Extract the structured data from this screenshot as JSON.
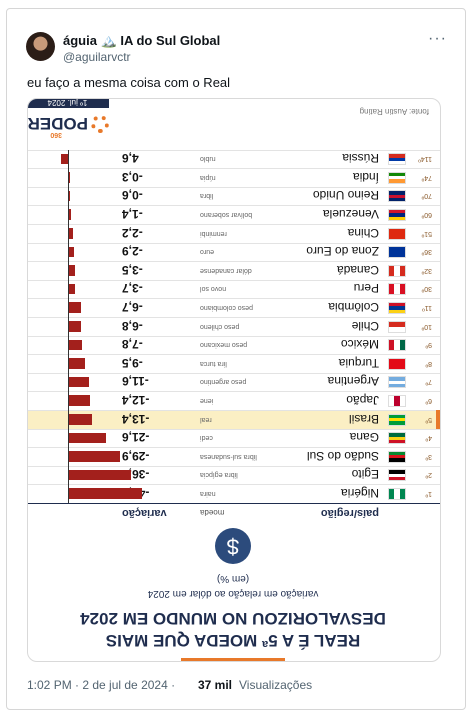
{
  "tweet": {
    "author_name": "águia 🏔️ IA do Sul Global",
    "handle": "@aguilarvctr",
    "text": "eu faço a mesma coisa com o Real",
    "time": "1:02 PM · 2 de jul de 2024 ·",
    "views": "37 mil",
    "views_label": "Visualizações"
  },
  "image": {
    "title": "REAL É A 5ª MOEDA QUE MAIS DESVALORIZOU NO MUNDO EM 2024",
    "subtitle": "variação em relação ao dólar em 2024",
    "unit": "(em %)",
    "headers": [
      "país/região",
      "moeda",
      "variação"
    ],
    "bar_color": "#a3201c",
    "highlight_color": "#fbefc4",
    "rows": [
      {
        "rank": "1º",
        "country": "Nigéria",
        "currency": "naira",
        "value": -42.3,
        "value_label": "-42,3",
        "flag": [
          "#008751",
          "#ffffff",
          "#008751"
        ],
        "flag_vertical": true
      },
      {
        "rank": "2º",
        "country": "Egito",
        "currency": "libra egípcia",
        "value": -36.0,
        "value_label": "-36,0",
        "flag": [
          "#ce1126",
          "#ffffff",
          "#000000"
        ],
        "flag_vertical": false
      },
      {
        "rank": "3º",
        "country": "Sudão do Sul",
        "currency": "libra sul-sudanesa",
        "value": -29.9,
        "value_label": "-29,9",
        "flag": [
          "#000000",
          "#da121a",
          "#078930"
        ],
        "flag_vertical": false
      },
      {
        "rank": "4º",
        "country": "Gana",
        "currency": "cedi",
        "value": -21.6,
        "value_label": "-21,6",
        "flag": [
          "#ce1126",
          "#fcd116",
          "#006b3f"
        ],
        "flag_vertical": false
      },
      {
        "rank": "5º",
        "country": "Brasil",
        "currency": "real",
        "value": -13.4,
        "value_label": "-13,4",
        "flag": [
          "#009c3b",
          "#ffdf00",
          "#009c3b"
        ],
        "flag_vertical": false,
        "highlighted": true
      },
      {
        "rank": "6º",
        "country": "Japão",
        "currency": "iene",
        "value": -12.4,
        "value_label": "-12,4",
        "flag": [
          "#ffffff",
          "#bc002d",
          "#ffffff"
        ],
        "flag_vertical": true
      },
      {
        "rank": "7º",
        "country": "Argentina",
        "currency": "peso argentino",
        "value": -11.6,
        "value_label": "-11,6",
        "flag": [
          "#74acdf",
          "#ffffff",
          "#74acdf"
        ],
        "flag_vertical": false
      },
      {
        "rank": "8º",
        "country": "Turquia",
        "currency": "lira turca",
        "value": -9.5,
        "value_label": "-9,5",
        "flag": [
          "#e30a17",
          "#e30a17",
          "#e30a17"
        ],
        "flag_vertical": false
      },
      {
        "rank": "9º",
        "country": "México",
        "currency": "peso mexicano",
        "value": -7.8,
        "value_label": "-7,8",
        "flag": [
          "#006847",
          "#ffffff",
          "#ce1126"
        ],
        "flag_vertical": true
      },
      {
        "rank": "10º",
        "country": "Chile",
        "currency": "peso chileno",
        "value": -6.8,
        "value_label": "-6,8",
        "flag": [
          "#ffffff",
          "#d52b1e"
        ],
        "flag_vertical": false
      },
      {
        "rank": "11º",
        "country": "Colômbia",
        "currency": "peso colombiano",
        "value": -6.7,
        "value_label": "-6,7",
        "flag": [
          "#fcd116",
          "#003893",
          "#ce1126"
        ],
        "flag_vertical": false
      },
      {
        "rank": "30º",
        "country": "Peru",
        "currency": "novo sol",
        "value": -3.7,
        "value_label": "-3,7",
        "flag": [
          "#d91023",
          "#ffffff",
          "#d91023"
        ],
        "flag_vertical": true
      },
      {
        "rank": "32º",
        "country": "Canadá",
        "currency": "dólar canadense",
        "value": -3.5,
        "value_label": "-3,5",
        "flag": [
          "#d52b1e",
          "#ffffff",
          "#d52b1e"
        ],
        "flag_vertical": true
      },
      {
        "rank": "36º",
        "country": "Zona do Euro",
        "currency": "euro",
        "value": -2.9,
        "value_label": "-2,9",
        "flag": [
          "#003399",
          "#003399",
          "#003399"
        ],
        "flag_vertical": false
      },
      {
        "rank": "51º",
        "country": "China",
        "currency": "renminbi",
        "value": -2.2,
        "value_label": "-2,2",
        "flag": [
          "#de2910",
          "#de2910",
          "#de2910"
        ],
        "flag_vertical": false
      },
      {
        "rank": "60º",
        "country": "Venezuela",
        "currency": "bolívar soberano",
        "value": -1.4,
        "value_label": "-1,4",
        "flag": [
          "#ffcc00",
          "#00247d",
          "#cf142b"
        ],
        "flag_vertical": false
      },
      {
        "rank": "70º",
        "country": "Reino Unido",
        "currency": "libra",
        "value": -0.6,
        "value_label": "-0,6",
        "flag": [
          "#012169",
          "#c8102e",
          "#012169"
        ],
        "flag_vertical": false
      },
      {
        "rank": "74º",
        "country": "Índia",
        "currency": "rúpia",
        "value": -0.3,
        "value_label": "-0,3",
        "flag": [
          "#ff9933",
          "#ffffff",
          "#138808"
        ],
        "flag_vertical": false
      },
      {
        "rank": "114º",
        "country": "Rússia",
        "currency": "rublo",
        "value": 4.6,
        "value_label": "4,6",
        "flag": [
          "#ffffff",
          "#0039a6",
          "#d52b1e"
        ],
        "flag_vertical": false
      }
    ],
    "logo_name": "PODER",
    "logo_number": "360",
    "date": "1º jul. 2024",
    "source": "fonte: Austin Rating"
  }
}
